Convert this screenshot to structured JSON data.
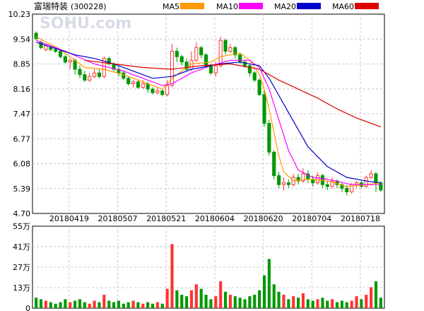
{
  "title": "富瑞特装",
  "code": "(300228)",
  "watermark": "SOHU.com",
  "legend": [
    {
      "name": "MA5",
      "color": "#ff9900"
    },
    {
      "name": "MA10",
      "color": "#ff00ff"
    },
    {
      "name": "MA20",
      "color": "#0000cc"
    },
    {
      "name": "MA60",
      "color": "#dd0000"
    }
  ],
  "colors": {
    "up": "#ff3333",
    "down": "#009900",
    "grid": "#c8c8c8",
    "axis": "#000000"
  },
  "chart_data": [
    {
      "type": "candlestick",
      "ylim": [
        4.7,
        10.23
      ],
      "yticks": [
        "10.23",
        "9.54",
        "8.85",
        "8.16",
        "7.47",
        "6.77",
        "6.08",
        "5.39",
        "4.70"
      ],
      "xticks": [
        "20180419",
        "20180507",
        "20180521",
        "20180604",
        "20180620",
        "20180704",
        "20180718"
      ],
      "xtick_index": [
        8,
        18,
        28,
        38,
        48,
        58,
        68
      ],
      "grid": true,
      "candles": [
        [
          9.7,
          9.55,
          9.75,
          9.5
        ],
        [
          9.45,
          9.3,
          9.5,
          9.25
        ],
        [
          9.25,
          9.35,
          9.4,
          9.2
        ],
        [
          9.3,
          9.25,
          9.35,
          9.2
        ],
        [
          9.25,
          9.2,
          9.3,
          9.15
        ],
        [
          9.2,
          9.05,
          9.25,
          9.0
        ],
        [
          9.05,
          8.9,
          9.1,
          8.85
        ],
        [
          8.9,
          8.95,
          9.0,
          8.7
        ],
        [
          8.95,
          8.7,
          9.0,
          8.55
        ],
        [
          8.7,
          8.55,
          8.8,
          8.45
        ],
        [
          8.55,
          8.4,
          8.65,
          8.35
        ],
        [
          8.4,
          8.5,
          8.6,
          8.35
        ],
        [
          8.5,
          8.6,
          8.7,
          8.45
        ],
        [
          8.6,
          8.5,
          8.7,
          8.45
        ],
        [
          8.5,
          9.0,
          9.05,
          8.45
        ],
        [
          9.0,
          8.85,
          9.05,
          8.8
        ],
        [
          8.85,
          8.7,
          8.9,
          8.65
        ],
        [
          8.7,
          8.6,
          8.8,
          8.5
        ],
        [
          8.6,
          8.45,
          8.65,
          8.4
        ],
        [
          8.45,
          8.3,
          8.5,
          8.25
        ],
        [
          8.3,
          8.35,
          8.4,
          8.2
        ],
        [
          8.35,
          8.2,
          8.4,
          8.15
        ],
        [
          8.2,
          8.3,
          8.4,
          8.15
        ],
        [
          8.3,
          8.15,
          8.35,
          8.05
        ],
        [
          8.15,
          8.05,
          8.2,
          8.0
        ],
        [
          8.05,
          8.1,
          8.2,
          8.0
        ],
        [
          8.1,
          8.0,
          8.15,
          7.95
        ],
        [
          8.0,
          8.25,
          8.4,
          7.95
        ],
        [
          8.25,
          9.2,
          9.4,
          8.2
        ],
        [
          9.2,
          9.05,
          9.3,
          8.9
        ],
        [
          9.05,
          8.9,
          9.1,
          8.8
        ],
        [
          8.9,
          8.7,
          9.0,
          8.65
        ],
        [
          8.7,
          8.95,
          9.2,
          8.65
        ],
        [
          8.95,
          9.3,
          9.45,
          8.9
        ],
        [
          9.3,
          9.1,
          9.35,
          9.0
        ],
        [
          9.1,
          8.8,
          9.15,
          8.75
        ],
        [
          8.8,
          8.6,
          8.85,
          8.55
        ],
        [
          8.6,
          8.8,
          8.9,
          8.5
        ],
        [
          8.8,
          9.5,
          9.6,
          8.75
        ],
        [
          9.5,
          9.2,
          9.55,
          9.1
        ],
        [
          9.2,
          9.3,
          9.4,
          9.15
        ],
        [
          9.3,
          9.1,
          9.35,
          9.0
        ],
        [
          9.1,
          8.9,
          9.15,
          8.85
        ],
        [
          8.9,
          8.8,
          8.95,
          8.75
        ],
        [
          8.8,
          8.6,
          8.85,
          8.5
        ],
        [
          8.6,
          8.4,
          8.65,
          8.35
        ],
        [
          8.4,
          8.0,
          8.45,
          7.95
        ],
        [
          8.0,
          7.2,
          8.1,
          7.1
        ],
        [
          7.2,
          6.4,
          7.3,
          6.3
        ],
        [
          6.4,
          5.75,
          6.45,
          5.65
        ],
        [
          5.75,
          5.5,
          5.85,
          5.4
        ],
        [
          5.5,
          5.55,
          5.7,
          5.35
        ],
        [
          5.55,
          5.5,
          5.65,
          5.4
        ],
        [
          5.5,
          5.7,
          5.8,
          5.45
        ],
        [
          5.7,
          5.6,
          5.8,
          5.5
        ],
        [
          5.6,
          5.8,
          5.95,
          5.55
        ],
        [
          5.8,
          5.65,
          5.9,
          5.55
        ],
        [
          5.65,
          5.55,
          5.75,
          5.45
        ],
        [
          5.55,
          5.75,
          5.85,
          5.5
        ],
        [
          5.75,
          5.5,
          5.8,
          5.4
        ],
        [
          5.5,
          5.45,
          5.6,
          5.35
        ],
        [
          5.45,
          5.6,
          5.7,
          5.4
        ],
        [
          5.6,
          5.5,
          5.65,
          5.4
        ],
        [
          5.5,
          5.4,
          5.55,
          5.3
        ],
        [
          5.4,
          5.3,
          5.5,
          5.2
        ],
        [
          5.3,
          5.5,
          5.55,
          5.25
        ],
        [
          5.5,
          5.55,
          5.6,
          5.4
        ],
        [
          5.55,
          5.45,
          5.6,
          5.4
        ],
        [
          5.45,
          5.7,
          5.75,
          5.4
        ],
        [
          5.7,
          5.8,
          5.9,
          5.65
        ],
        [
          5.8,
          5.55,
          5.85,
          5.3
        ],
        [
          5.55,
          5.35,
          5.6,
          5.3
        ]
      ],
      "ma": {
        "MA5": [
          [
            0,
            9.6
          ],
          [
            5,
            9.25
          ],
          [
            10,
            8.75
          ],
          [
            14,
            8.7
          ],
          [
            18,
            8.55
          ],
          [
            22,
            8.35
          ],
          [
            26,
            8.15
          ],
          [
            28,
            8.45
          ],
          [
            32,
            8.85
          ],
          [
            36,
            8.9
          ],
          [
            38,
            9.05
          ],
          [
            42,
            9.15
          ],
          [
            44,
            8.95
          ],
          [
            46,
            8.55
          ],
          [
            47,
            8.15
          ],
          [
            48,
            7.6
          ],
          [
            49,
            6.95
          ],
          [
            50,
            6.3
          ],
          [
            51,
            5.85
          ],
          [
            53,
            5.6
          ],
          [
            56,
            5.65
          ],
          [
            60,
            5.6
          ],
          [
            64,
            5.45
          ],
          [
            68,
            5.5
          ],
          [
            71,
            5.55
          ]
        ],
        "MA10": [
          [
            0,
            9.5
          ],
          [
            6,
            9.2
          ],
          [
            12,
            8.85
          ],
          [
            18,
            8.65
          ],
          [
            22,
            8.45
          ],
          [
            26,
            8.25
          ],
          [
            28,
            8.3
          ],
          [
            32,
            8.6
          ],
          [
            36,
            8.8
          ],
          [
            40,
            8.95
          ],
          [
            44,
            8.95
          ],
          [
            46,
            8.75
          ],
          [
            48,
            8.15
          ],
          [
            50,
            7.3
          ],
          [
            52,
            6.45
          ],
          [
            54,
            5.9
          ],
          [
            57,
            5.7
          ],
          [
            60,
            5.65
          ],
          [
            65,
            5.5
          ],
          [
            71,
            5.5
          ]
        ],
        "MA20": [
          [
            0,
            9.45
          ],
          [
            8,
            9.1
          ],
          [
            12,
            9.0
          ],
          [
            16,
            8.85
          ],
          [
            20,
            8.65
          ],
          [
            24,
            8.45
          ],
          [
            28,
            8.5
          ],
          [
            32,
            8.7
          ],
          [
            38,
            8.85
          ],
          [
            42,
            8.9
          ],
          [
            46,
            8.8
          ],
          [
            48,
            8.45
          ],
          [
            52,
            7.5
          ],
          [
            56,
            6.55
          ],
          [
            60,
            6.0
          ],
          [
            64,
            5.7
          ],
          [
            68,
            5.6
          ],
          [
            71,
            5.55
          ]
        ],
        "MA60": [
          [
            10,
            8.95
          ],
          [
            16,
            8.85
          ],
          [
            22,
            8.75
          ],
          [
            28,
            8.7
          ],
          [
            34,
            8.8
          ],
          [
            40,
            8.85
          ],
          [
            46,
            8.7
          ],
          [
            50,
            8.4
          ],
          [
            54,
            8.15
          ],
          [
            58,
            7.9
          ],
          [
            62,
            7.6
          ],
          [
            66,
            7.35
          ],
          [
            71,
            7.1
          ]
        ]
      }
    },
    {
      "type": "bar",
      "name": "volume",
      "ylim": [
        0,
        55
      ],
      "yticks": [
        "55万",
        "41万",
        "27万",
        "13万",
        "0"
      ],
      "values": [
        7,
        6,
        5,
        4,
        3,
        4,
        6,
        4,
        5,
        6,
        4,
        3,
        5,
        4,
        9,
        5,
        4,
        5,
        3,
        4,
        5,
        4,
        3,
        4,
        3,
        4,
        3,
        13,
        43,
        12,
        9,
        8,
        12,
        16,
        13,
        9,
        6,
        8,
        18,
        11,
        9,
        8,
        7,
        6,
        8,
        9,
        12,
        22,
        33,
        16,
        11,
        9,
        6,
        8,
        7,
        10,
        6,
        5,
        6,
        7,
        5,
        6,
        4,
        5,
        4,
        5,
        8,
        6,
        9,
        14,
        18,
        7
      ]
    }
  ]
}
